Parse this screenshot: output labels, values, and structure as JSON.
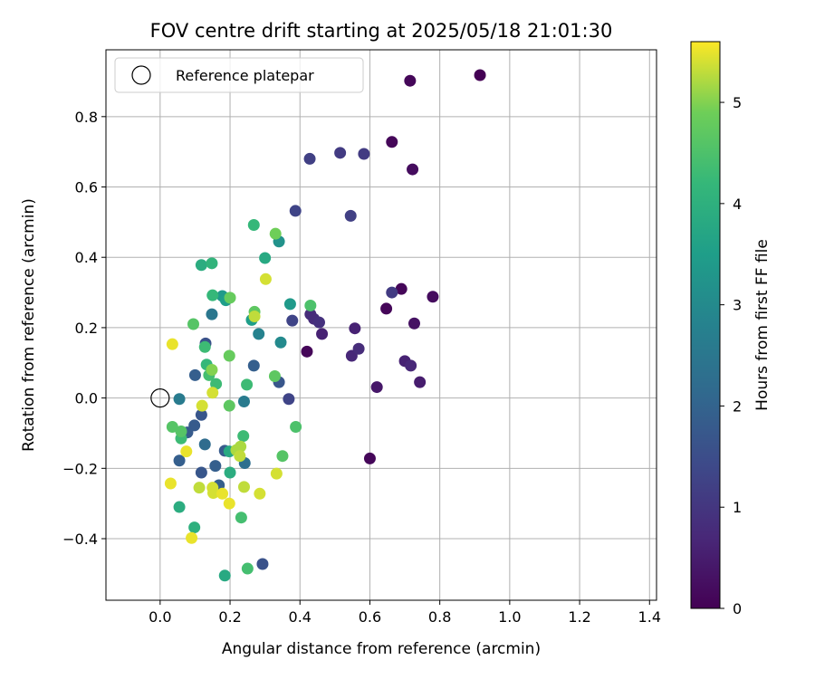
{
  "chart_data": {
    "type": "scatter",
    "title": "FOV centre drift starting at 2025/05/18 21:01:30",
    "xlabel": "Angular distance from reference (arcmin)",
    "ylabel": "Rotation from reference (arcmin)",
    "xlim": [
      -0.155,
      1.42
    ],
    "ylim": [
      -0.575,
      0.99
    ],
    "x_ticks": [
      0.0,
      0.2,
      0.4,
      0.6,
      0.8,
      1.0,
      1.2,
      1.4
    ],
    "y_ticks": [
      -0.4,
      -0.2,
      0.0,
      0.2,
      0.4,
      0.6,
      0.8
    ],
    "x_tick_labels": [
      "0.0",
      "0.2",
      "0.4",
      "0.6",
      "0.8",
      "1.0",
      "1.2",
      "1.4"
    ],
    "y_tick_labels": [
      "−0.4",
      "−0.2",
      "0.0",
      "0.2",
      "0.4",
      "0.6",
      "0.8"
    ],
    "grid": true,
    "legend": {
      "placement": "top-left",
      "entries": [
        "Reference platepar"
      ]
    },
    "reference_point": {
      "x": 0.0,
      "y": 0.0
    },
    "colormap": "viridis",
    "colorbar": {
      "label": "Hours from first FF file",
      "range": [
        0,
        5.6
      ],
      "ticks": [
        0,
        1,
        2,
        3,
        4,
        5
      ],
      "tick_labels": [
        "0",
        "1",
        "2",
        "3",
        "4",
        "5"
      ]
    },
    "points": [
      {
        "x": 0.915,
        "y": 0.918,
        "c": 0.0
      },
      {
        "x": 0.715,
        "y": 0.902,
        "c": 0.1
      },
      {
        "x": 0.663,
        "y": 0.728,
        "c": 0.1
      },
      {
        "x": 0.722,
        "y": 0.65,
        "c": 0.2
      },
      {
        "x": 0.69,
        "y": 0.31,
        "c": 0.1
      },
      {
        "x": 0.78,
        "y": 0.288,
        "c": 0.2
      },
      {
        "x": 0.647,
        "y": 0.254,
        "c": 0.1
      },
      {
        "x": 0.727,
        "y": 0.212,
        "c": 0.3
      },
      {
        "x": 0.42,
        "y": 0.132,
        "c": 0.1
      },
      {
        "x": 0.6,
        "y": -0.172,
        "c": 0.1
      },
      {
        "x": 0.62,
        "y": 0.031,
        "c": 0.4
      },
      {
        "x": 0.743,
        "y": 0.045,
        "c": 0.5
      },
      {
        "x": 0.7,
        "y": 0.105,
        "c": 0.6
      },
      {
        "x": 0.717,
        "y": 0.092,
        "c": 0.7
      },
      {
        "x": 0.557,
        "y": 0.198,
        "c": 0.6
      },
      {
        "x": 0.463,
        "y": 0.182,
        "c": 0.6
      },
      {
        "x": 0.548,
        "y": 0.12,
        "c": 0.7
      },
      {
        "x": 0.568,
        "y": 0.14,
        "c": 0.8
      },
      {
        "x": 0.43,
        "y": 0.238,
        "c": 0.8
      },
      {
        "x": 0.44,
        "y": 0.225,
        "c": 0.8
      },
      {
        "x": 0.455,
        "y": 0.215,
        "c": 0.9
      },
      {
        "x": 0.663,
        "y": 0.3,
        "c": 1.1
      },
      {
        "x": 0.515,
        "y": 0.697,
        "c": 1.1
      },
      {
        "x": 0.583,
        "y": 0.694,
        "c": 1.1
      },
      {
        "x": 0.428,
        "y": 0.68,
        "c": 1.2
      },
      {
        "x": 0.545,
        "y": 0.518,
        "c": 1.2
      },
      {
        "x": 0.387,
        "y": 0.532,
        "c": 1.3
      },
      {
        "x": 0.378,
        "y": 0.22,
        "c": 1.3
      },
      {
        "x": 0.368,
        "y": -0.003,
        "c": 1.3
      },
      {
        "x": 0.293,
        "y": -0.472,
        "c": 1.6
      },
      {
        "x": 0.34,
        "y": 0.045,
        "c": 1.7
      },
      {
        "x": 0.268,
        "y": 0.092,
        "c": 1.9
      },
      {
        "x": 0.13,
        "y": 0.155,
        "c": 1.6
      },
      {
        "x": 0.1,
        "y": 0.065,
        "c": 1.9
      },
      {
        "x": 0.118,
        "y": -0.048,
        "c": 1.7
      },
      {
        "x": 0.098,
        "y": -0.078,
        "c": 1.8
      },
      {
        "x": 0.078,
        "y": -0.098,
        "c": 1.8
      },
      {
        "x": 0.055,
        "y": -0.178,
        "c": 1.9
      },
      {
        "x": 0.118,
        "y": -0.212,
        "c": 1.7
      },
      {
        "x": 0.158,
        "y": -0.193,
        "c": 1.9
      },
      {
        "x": 0.185,
        "y": -0.15,
        "c": 1.8
      },
      {
        "x": 0.168,
        "y": -0.248,
        "c": 1.9
      },
      {
        "x": 0.128,
        "y": -0.132,
        "c": 2.2
      },
      {
        "x": 0.242,
        "y": -0.185,
        "c": 2.3
      },
      {
        "x": 0.24,
        "y": -0.01,
        "c": 2.6
      },
      {
        "x": 0.055,
        "y": -0.003,
        "c": 2.6
      },
      {
        "x": 0.148,
        "y": 0.238,
        "c": 2.5
      },
      {
        "x": 0.282,
        "y": 0.182,
        "c": 2.8
      },
      {
        "x": 0.345,
        "y": 0.158,
        "c": 3.0
      },
      {
        "x": 0.34,
        "y": 0.445,
        "c": 3.2
      },
      {
        "x": 0.372,
        "y": 0.267,
        "c": 3.4
      },
      {
        "x": 0.262,
        "y": 0.222,
        "c": 3.5
      },
      {
        "x": 0.178,
        "y": 0.29,
        "c": 3.4
      },
      {
        "x": 0.188,
        "y": 0.278,
        "c": 3.5
      },
      {
        "x": 0.3,
        "y": 0.398,
        "c": 3.8
      },
      {
        "x": 0.118,
        "y": 0.378,
        "c": 3.9
      },
      {
        "x": 0.198,
        "y": -0.152,
        "c": 3.8
      },
      {
        "x": 0.2,
        "y": -0.212,
        "c": 3.9
      },
      {
        "x": 0.055,
        "y": -0.31,
        "c": 3.9
      },
      {
        "x": 0.098,
        "y": -0.368,
        "c": 4.0
      },
      {
        "x": 0.185,
        "y": -0.505,
        "c": 3.8
      },
      {
        "x": 0.148,
        "y": 0.383,
        "c": 4.1
      },
      {
        "x": 0.15,
        "y": 0.292,
        "c": 4.2
      },
      {
        "x": 0.268,
        "y": 0.492,
        "c": 4.2
      },
      {
        "x": 0.128,
        "y": 0.145,
        "c": 4.3
      },
      {
        "x": 0.133,
        "y": 0.095,
        "c": 4.2
      },
      {
        "x": 0.14,
        "y": 0.065,
        "c": 4.4
      },
      {
        "x": 0.16,
        "y": 0.04,
        "c": 4.3
      },
      {
        "x": 0.248,
        "y": 0.038,
        "c": 4.3
      },
      {
        "x": 0.06,
        "y": -0.115,
        "c": 4.3
      },
      {
        "x": 0.238,
        "y": -0.108,
        "c": 4.3
      },
      {
        "x": 0.232,
        "y": -0.34,
        "c": 4.4
      },
      {
        "x": 0.25,
        "y": -0.485,
        "c": 4.4
      },
      {
        "x": 0.43,
        "y": 0.263,
        "c": 4.5
      },
      {
        "x": 0.27,
        "y": 0.245,
        "c": 4.7
      },
      {
        "x": 0.095,
        "y": 0.21,
        "c": 4.6
      },
      {
        "x": 0.2,
        "y": 0.285,
        "c": 4.8
      },
      {
        "x": 0.328,
        "y": 0.062,
        "c": 4.7
      },
      {
        "x": 0.198,
        "y": -0.022,
        "c": 4.7
      },
      {
        "x": 0.388,
        "y": -0.082,
        "c": 4.5
      },
      {
        "x": 0.35,
        "y": -0.165,
        "c": 4.6
      },
      {
        "x": 0.035,
        "y": -0.082,
        "c": 4.6
      },
      {
        "x": 0.06,
        "y": -0.095,
        "c": 4.6
      },
      {
        "x": 0.33,
        "y": 0.467,
        "c": 4.9
      },
      {
        "x": 0.198,
        "y": 0.12,
        "c": 4.8
      },
      {
        "x": 0.148,
        "y": 0.08,
        "c": 5.0
      },
      {
        "x": 0.218,
        "y": -0.148,
        "c": 5.2
      },
      {
        "x": 0.23,
        "y": -0.138,
        "c": 5.2
      },
      {
        "x": 0.27,
        "y": 0.232,
        "c": 5.3
      },
      {
        "x": 0.302,
        "y": 0.338,
        "c": 5.4
      },
      {
        "x": 0.15,
        "y": 0.015,
        "c": 5.4
      },
      {
        "x": 0.12,
        "y": -0.022,
        "c": 5.4
      },
      {
        "x": 0.035,
        "y": 0.153,
        "c": 5.5
      },
      {
        "x": 0.075,
        "y": -0.152,
        "c": 5.5
      },
      {
        "x": 0.228,
        "y": -0.165,
        "c": 5.3
      },
      {
        "x": 0.333,
        "y": -0.215,
        "c": 5.4
      },
      {
        "x": 0.03,
        "y": -0.243,
        "c": 5.5
      },
      {
        "x": 0.112,
        "y": -0.255,
        "c": 5.3
      },
      {
        "x": 0.15,
        "y": -0.255,
        "c": 5.4
      },
      {
        "x": 0.152,
        "y": -0.27,
        "c": 5.4
      },
      {
        "x": 0.178,
        "y": -0.272,
        "c": 5.5
      },
      {
        "x": 0.198,
        "y": -0.3,
        "c": 5.5
      },
      {
        "x": 0.24,
        "y": -0.253,
        "c": 5.3
      },
      {
        "x": 0.285,
        "y": -0.272,
        "c": 5.4
      },
      {
        "x": 0.09,
        "y": -0.398,
        "c": 5.5
      }
    ]
  }
}
